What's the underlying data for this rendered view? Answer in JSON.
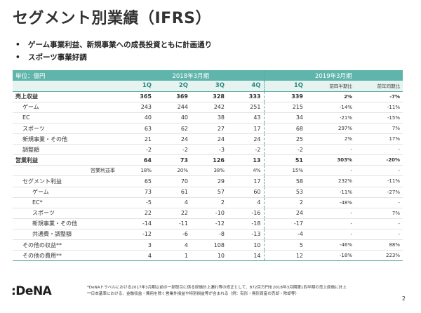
{
  "title": "セグメント別業績（IFRS）",
  "bullets": [
    "ゲーム事業利益、新規事業への成長投資ともに計画通り",
    "スポーツ事業好調"
  ],
  "table": {
    "unit_label": "単位：億円",
    "period_2018": "2018年3月期",
    "period_2019": "2019年3月期",
    "quarters_2018": [
      "1Q",
      "2Q",
      "3Q",
      "4Q"
    ],
    "q_2019": "1Q",
    "col_qoq": "前四半期比",
    "col_yoy": "前年同期比",
    "rows": [
      {
        "label": "売上収益",
        "v": [
          "365",
          "369",
          "328",
          "333",
          "339",
          "2%",
          "-7%"
        ]
      },
      {
        "label": "ゲーム",
        "v": [
          "243",
          "244",
          "242",
          "251",
          "215",
          "-14%",
          "-11%"
        ]
      },
      {
        "label": "EC",
        "v": [
          "40",
          "40",
          "38",
          "43",
          "34",
          "-21%",
          "-15%"
        ]
      },
      {
        "label": "スポーツ",
        "v": [
          "63",
          "62",
          "27",
          "17",
          "68",
          "297%",
          "7%"
        ]
      },
      {
        "label": "新規事業・その他",
        "v": [
          "21",
          "24",
          "24",
          "24",
          "25",
          "2%",
          "17%"
        ]
      },
      {
        "label": "調整額",
        "v": [
          "-2",
          "-2",
          "-3",
          "-2",
          "-2",
          "-",
          "-"
        ]
      },
      {
        "label": "営業利益",
        "v": [
          "64",
          "73",
          "126",
          "13",
          "51",
          "303%",
          "-20%"
        ]
      },
      {
        "label": "営業利益率",
        "v": [
          "18%",
          "20%",
          "38%",
          "4%",
          "15%",
          "-",
          "-"
        ]
      },
      {
        "label": "セグメント利益",
        "v": [
          "65",
          "70",
          "29",
          "17",
          "58",
          "232%",
          "-11%"
        ]
      },
      {
        "label": "ゲーム",
        "v": [
          "73",
          "61",
          "57",
          "60",
          "53",
          "-11%",
          "-27%"
        ]
      },
      {
        "label": "EC*",
        "v": [
          "-5",
          "4",
          "2",
          "4",
          "2",
          "-48%",
          "-"
        ]
      },
      {
        "label": "スポーツ",
        "v": [
          "22",
          "22",
          "-10",
          "-16",
          "24",
          "-",
          "7%"
        ]
      },
      {
        "label": "新規事業・その他",
        "v": [
          "-14",
          "-11",
          "-12",
          "-18",
          "-17",
          "-",
          "-"
        ]
      },
      {
        "label": "共通費・調整額",
        "v": [
          "-12",
          "-6",
          "-8",
          "-13",
          "-4",
          "-",
          "-"
        ]
      },
      {
        "label": "その他の収益**",
        "v": [
          "3",
          "4",
          "108",
          "10",
          "5",
          "-46%",
          "88%"
        ]
      },
      {
        "label": "その他の費用**",
        "v": [
          "4",
          "1",
          "10",
          "14",
          "12",
          "-18%",
          "223%"
        ]
      }
    ]
  },
  "footnotes": [
    "*DeNAトラベルにおける2017年3月期以前の一部取引に係る原価計上漏れ等の修正として、872百万円を2018年3月期第1四半期の売上原価に計上",
    "**日本基準における、金融収益・費用を除く営業外損益や特別損益等が含まれる（例：有形・無形資産の売却・除却等）"
  ],
  "logo_text": ":DeNA",
  "page_number": "2"
}
